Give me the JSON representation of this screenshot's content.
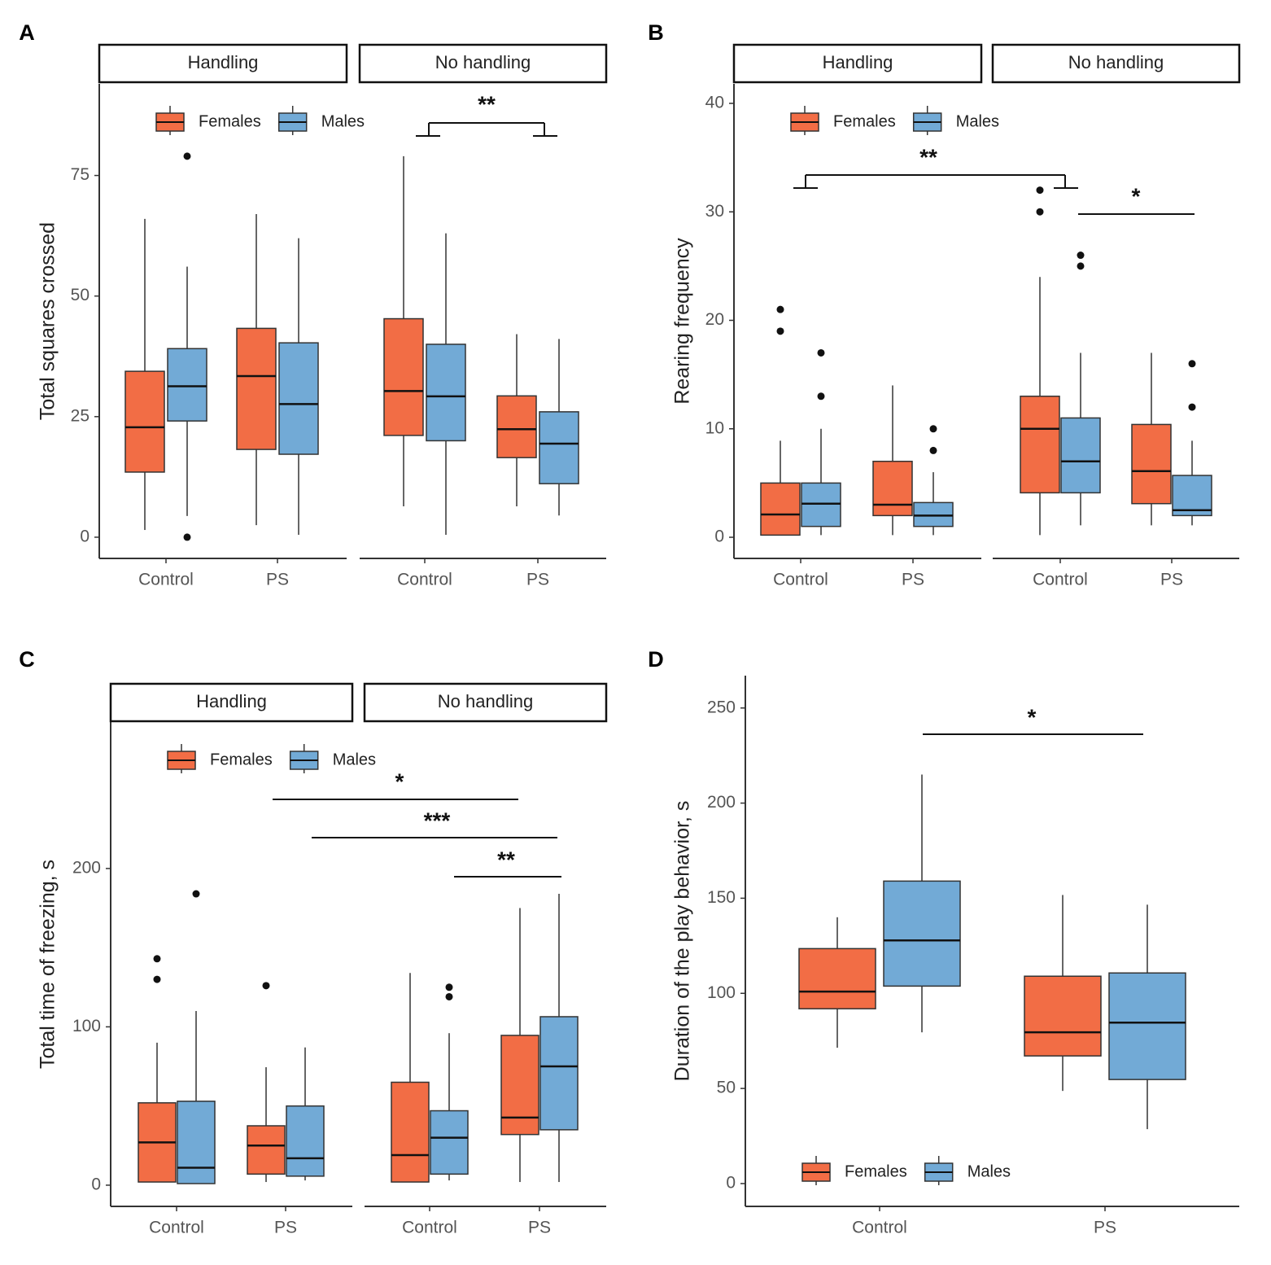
{
  "chart_data": [
    {
      "type": "box",
      "label": "A",
      "ylabel": "Total squares crossed",
      "facets": [
        "Handling",
        "No handling"
      ],
      "categories": [
        "Control",
        "PS"
      ],
      "ylim": [
        -4.4,
        94
      ],
      "yticks": [
        0,
        25,
        50,
        75
      ],
      "legend": "top-left",
      "series": [
        {
          "name": "Females",
          "color": "#f26d45",
          "boxes": [
            [
              {
                "low": 1.5,
                "q1": 13.5,
                "median": 22.8,
                "q3": 34.4,
                "high": 66,
                "outliers": []
              },
              {
                "low": 2.5,
                "q1": 18.2,
                "median": 33.4,
                "q3": 43.3,
                "high": 67,
                "outliers": []
              }
            ],
            [
              {
                "low": 6.4,
                "q1": 21.1,
                "median": 30.3,
                "q3": 45.3,
                "high": 79,
                "outliers": []
              },
              {
                "low": 6.4,
                "q1": 16.5,
                "median": 22.4,
                "q3": 29.3,
                "high": 42.1,
                "outliers": []
              }
            ]
          ]
        },
        {
          "name": "Males",
          "color": "#72aad6",
          "boxes": [
            [
              {
                "low": 4.4,
                "q1": 24.1,
                "median": 31.3,
                "q3": 39.1,
                "high": 56.1,
                "outliers": [
                  79,
                  0
                ]
              },
              {
                "low": 0.5,
                "q1": 17.2,
                "median": 27.6,
                "q3": 40.3,
                "high": 62,
                "outliers": []
              }
            ],
            [
              {
                "low": 0.5,
                "q1": 20,
                "median": 29.2,
                "q3": 40,
                "high": 63,
                "outliers": []
              },
              {
                "low": 4.5,
                "q1": 11.1,
                "median": 19.4,
                "q3": 26,
                "high": 41.1,
                "outliers": []
              }
            ]
          ]
        }
      ],
      "annotations": [
        {
          "label": "**"
        }
      ]
    },
    {
      "type": "box",
      "label": "B",
      "ylabel": "Rearing frequency",
      "facets": [
        "Handling",
        "No handling"
      ],
      "categories": [
        "Control",
        "PS"
      ],
      "ylim": [
        -1.95,
        41.8
      ],
      "yticks": [
        0,
        10,
        20,
        30,
        40
      ],
      "legend": "top-left",
      "series": [
        {
          "name": "Females",
          "color": "#f26d45",
          "boxes": [
            [
              {
                "low": 0.2,
                "q1": 0.2,
                "median": 2.1,
                "q3": 5,
                "high": 8.9,
                "outliers": [
                  21,
                  19
                ]
              },
              {
                "low": 0.2,
                "q1": 2,
                "median": 3,
                "q3": 7,
                "high": 14,
                "outliers": []
              }
            ],
            [
              {
                "low": 0.2,
                "q1": 4.1,
                "median": 10,
                "q3": 13,
                "high": 24,
                "outliers": [
                  32,
                  30
                ]
              },
              {
                "low": 1.1,
                "q1": 3.1,
                "median": 6.1,
                "q3": 10.4,
                "high": 17,
                "outliers": []
              }
            ]
          ]
        },
        {
          "name": "Males",
          "color": "#72aad6",
          "boxes": [
            [
              {
                "low": 0.2,
                "q1": 1,
                "median": 3.1,
                "q3": 5,
                "high": 10,
                "outliers": [
                  17,
                  13
                ]
              },
              {
                "low": 0.2,
                "q1": 1,
                "median": 2,
                "q3": 3.2,
                "high": 6,
                "outliers": [
                  10,
                  8
                ]
              }
            ],
            [
              {
                "low": 1.1,
                "q1": 4.1,
                "median": 7,
                "q3": 11,
                "high": 17,
                "outliers": [
                  26,
                  25
                ]
              },
              {
                "low": 1.1,
                "q1": 2,
                "median": 2.5,
                "q3": 5.7,
                "high": 8.9,
                "outliers": [
                  16,
                  12
                ]
              }
            ]
          ]
        }
      ],
      "annotations": [
        {
          "label": "**"
        },
        {
          "label": "*"
        }
      ]
    },
    {
      "type": "box",
      "label": "C",
      "ylabel": "Total time of freezing, s",
      "facets": [
        "Handling",
        "No handling"
      ],
      "categories": [
        "Control",
        "PS"
      ],
      "ylim": [
        -13.4,
        292.5
      ],
      "yticks": [
        0,
        100,
        200
      ],
      "legend": "top-left",
      "series": [
        {
          "name": "Females",
          "color": "#f26d45",
          "boxes": [
            [
              {
                "low": 2,
                "q1": 2,
                "median": 27,
                "q3": 52,
                "high": 90,
                "outliers": [
                  143,
                  130
                ]
              },
              {
                "low": 2,
                "q1": 7,
                "median": 25,
                "q3": 37.5,
                "high": 74.5,
                "outliers": [
                  126
                ]
              }
            ],
            [
              {
                "low": 2,
                "q1": 2,
                "median": 19,
                "q3": 65,
                "high": 134,
                "outliers": []
              },
              {
                "low": 2,
                "q1": 32,
                "median": 42.7,
                "q3": 94.6,
                "high": 175,
                "outliers": []
              }
            ]
          ]
        },
        {
          "name": "Males",
          "color": "#72aad6",
          "boxes": [
            [
              {
                "low": 1,
                "q1": 1,
                "median": 11,
                "q3": 53,
                "high": 110,
                "outliers": [
                  184
                ]
              },
              {
                "low": 3,
                "q1": 5.7,
                "median": 17,
                "q3": 50,
                "high": 87,
                "outliers": []
              }
            ],
            [
              {
                "low": 3,
                "q1": 7,
                "median": 30,
                "q3": 47,
                "high": 96,
                "outliers": [
                  125,
                  119
                ]
              },
              {
                "low": 2,
                "q1": 35,
                "median": 75,
                "q3": 106.4,
                "high": 184,
                "outliers": []
              }
            ]
          ]
        }
      ],
      "annotations": [
        {
          "label": "*"
        },
        {
          "label": "***"
        },
        {
          "label": "**"
        }
      ]
    },
    {
      "type": "box",
      "label": "D",
      "ylabel": "Duration of the play behavior, s",
      "categories": [
        "Control",
        "PS"
      ],
      "ylim": [
        -12,
        267
      ],
      "yticks": [
        0,
        50,
        100,
        150,
        200,
        250
      ],
      "legend": "bottom-left",
      "series": [
        {
          "name": "Females",
          "color": "#f26d45",
          "boxes": [
            [
              {
                "low": 71.4,
                "q1": 91.9,
                "median": 100.9,
                "q3": 123.5,
                "high": 140,
                "outliers": []
              },
              {
                "low": 48.7,
                "q1": 67.1,
                "median": 79.5,
                "q3": 109,
                "high": 151.7,
                "outliers": []
              }
            ]
          ]
        },
        {
          "name": "Males",
          "color": "#72aad6",
          "boxes": [
            [
              {
                "low": 79.5,
                "q1": 103.8,
                "median": 127.8,
                "q3": 159,
                "high": 215,
                "outliers": []
              },
              {
                "low": 28.6,
                "q1": 54.7,
                "median": 84.6,
                "q3": 110.7,
                "high": 146.6,
                "outliers": []
              }
            ]
          ]
        }
      ],
      "annotations": [
        {
          "label": "*"
        }
      ]
    }
  ]
}
